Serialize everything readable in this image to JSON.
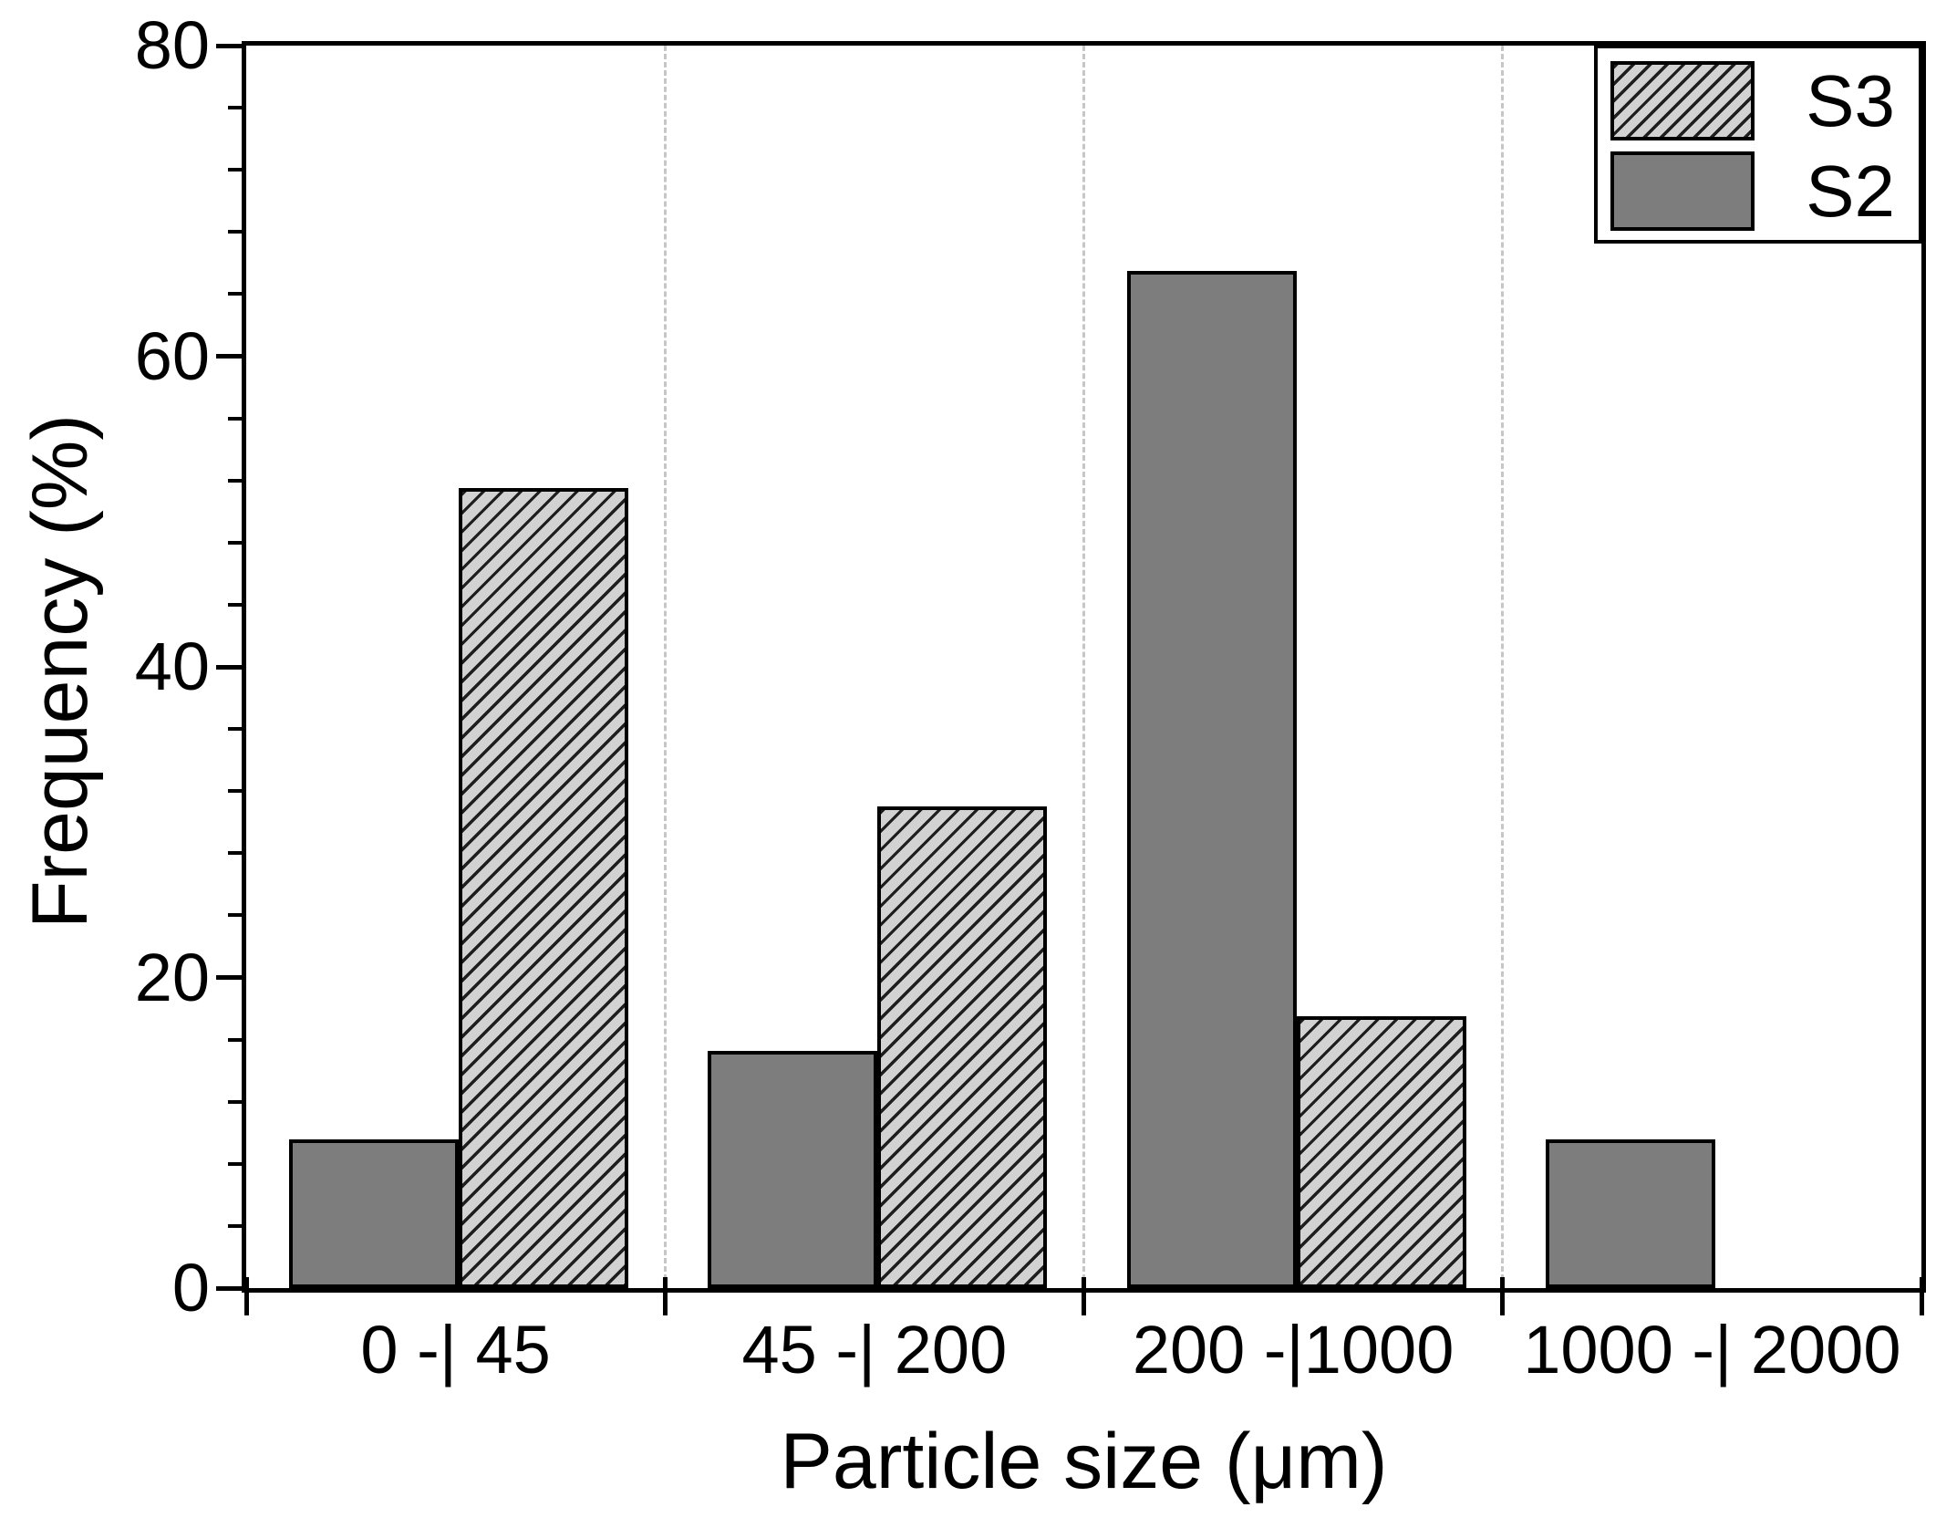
{
  "chart_data": {
    "type": "bar",
    "title": "",
    "xlabel": "Particle size (μm)",
    "ylabel": "Frequency (%)",
    "categories": [
      "0 -| 45",
      "45 -| 200",
      "200 -|1000",
      "1000 -| 2000"
    ],
    "series": [
      {
        "name": "S3",
        "style": "hatched",
        "column_in_group": 2,
        "values": [
          51.5,
          31,
          17.5,
          0
        ]
      },
      {
        "name": "S2",
        "style": "solid",
        "column_in_group": 1,
        "values": [
          9.6,
          15.3,
          65.5,
          9.6
        ]
      }
    ],
    "ylim": [
      0,
      80
    ],
    "y_major_ticks": [
      0,
      20,
      40,
      60,
      80
    ],
    "y_minor_step": 4,
    "grid": "vertical dashed lines between categories",
    "legend_position": "top-right inside frame",
    "colors": {
      "s2_fill": "#7d7d7d",
      "s3_fill": "#d2d2d2",
      "hatch_line": "#1e1e1e",
      "bar_border": "#000000",
      "frame": "#000000",
      "gridline": "#c6c6c6",
      "text": "#000000",
      "background": "#ffffff"
    }
  }
}
